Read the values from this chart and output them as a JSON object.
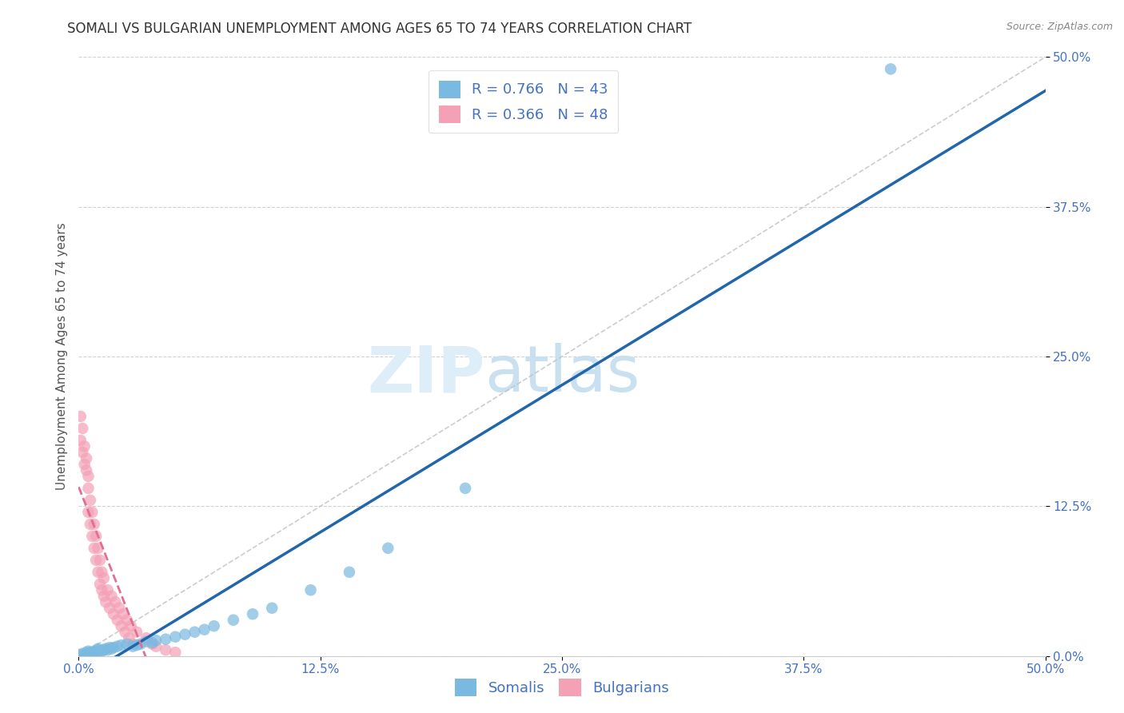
{
  "title": "SOMALI VS BULGARIAN UNEMPLOYMENT AMONG AGES 65 TO 74 YEARS CORRELATION CHART",
  "source": "Source: ZipAtlas.com",
  "ylabel": "Unemployment Among Ages 65 to 74 years",
  "legend_bottom": [
    "Somalis",
    "Bulgarians"
  ],
  "legend_top_r1": "R = 0.766",
  "legend_top_n1": "N = 43",
  "legend_top_r2": "R = 0.366",
  "legend_top_n2": "N = 48",
  "somali_color": "#7ab9e0",
  "bulgarian_color": "#f4a0b5",
  "somali_line_color": "#2166ac",
  "bulgarian_line_color": "#e07090",
  "watermark_zip": "ZIP",
  "watermark_atlas": "atlas",
  "xlim": [
    0.0,
    0.5
  ],
  "ylim": [
    0.0,
    0.5
  ],
  "tick_vals": [
    0.0,
    0.125,
    0.25,
    0.375,
    0.5
  ],
  "tick_labels": [
    "0.0%",
    "12.5%",
    "25.0%",
    "37.5%",
    "50.0%"
  ],
  "somali_x": [
    0.0,
    0.002,
    0.003,
    0.004,
    0.005,
    0.005,
    0.006,
    0.007,
    0.008,
    0.009,
    0.01,
    0.01,
    0.01,
    0.012,
    0.013,
    0.014,
    0.015,
    0.016,
    0.017,
    0.018,
    0.02,
    0.022,
    0.025,
    0.028,
    0.03,
    0.032,
    0.035,
    0.038,
    0.04,
    0.045,
    0.05,
    0.055,
    0.06,
    0.065,
    0.07,
    0.08,
    0.09,
    0.1,
    0.12,
    0.14,
    0.16,
    0.2,
    0.42
  ],
  "somali_y": [
    0.001,
    0.002,
    0.001,
    0.003,
    0.002,
    0.004,
    0.003,
    0.002,
    0.004,
    0.003,
    0.005,
    0.003,
    0.006,
    0.004,
    0.005,
    0.006,
    0.005,
    0.007,
    0.006,
    0.007,
    0.008,
    0.009,
    0.01,
    0.008,
    0.009,
    0.01,
    0.012,
    0.011,
    0.013,
    0.014,
    0.016,
    0.018,
    0.02,
    0.022,
    0.025,
    0.03,
    0.035,
    0.04,
    0.055,
    0.07,
    0.09,
    0.14,
    0.49
  ],
  "bulgarian_x": [
    0.001,
    0.001,
    0.002,
    0.002,
    0.003,
    0.003,
    0.004,
    0.004,
    0.005,
    0.005,
    0.005,
    0.006,
    0.006,
    0.007,
    0.007,
    0.008,
    0.008,
    0.009,
    0.009,
    0.01,
    0.01,
    0.011,
    0.011,
    0.012,
    0.012,
    0.013,
    0.013,
    0.014,
    0.015,
    0.016,
    0.017,
    0.018,
    0.019,
    0.02,
    0.021,
    0.022,
    0.023,
    0.024,
    0.025,
    0.026,
    0.027,
    0.028,
    0.03,
    0.035,
    0.038,
    0.04,
    0.045,
    0.05
  ],
  "bulgarian_y": [
    0.18,
    0.2,
    0.19,
    0.17,
    0.16,
    0.175,
    0.155,
    0.165,
    0.14,
    0.15,
    0.12,
    0.13,
    0.11,
    0.1,
    0.12,
    0.09,
    0.11,
    0.08,
    0.1,
    0.07,
    0.09,
    0.06,
    0.08,
    0.055,
    0.07,
    0.05,
    0.065,
    0.045,
    0.055,
    0.04,
    0.05,
    0.035,
    0.045,
    0.03,
    0.04,
    0.025,
    0.035,
    0.02,
    0.03,
    0.015,
    0.025,
    0.01,
    0.02,
    0.015,
    0.01,
    0.008,
    0.005,
    0.003
  ],
  "grid_color": "#cccccc",
  "background_color": "#ffffff",
  "tick_color": "#4472c4",
  "title_color": "#333333",
  "title_fontsize": 12,
  "axis_fontsize": 11,
  "legend_fontsize": 13
}
